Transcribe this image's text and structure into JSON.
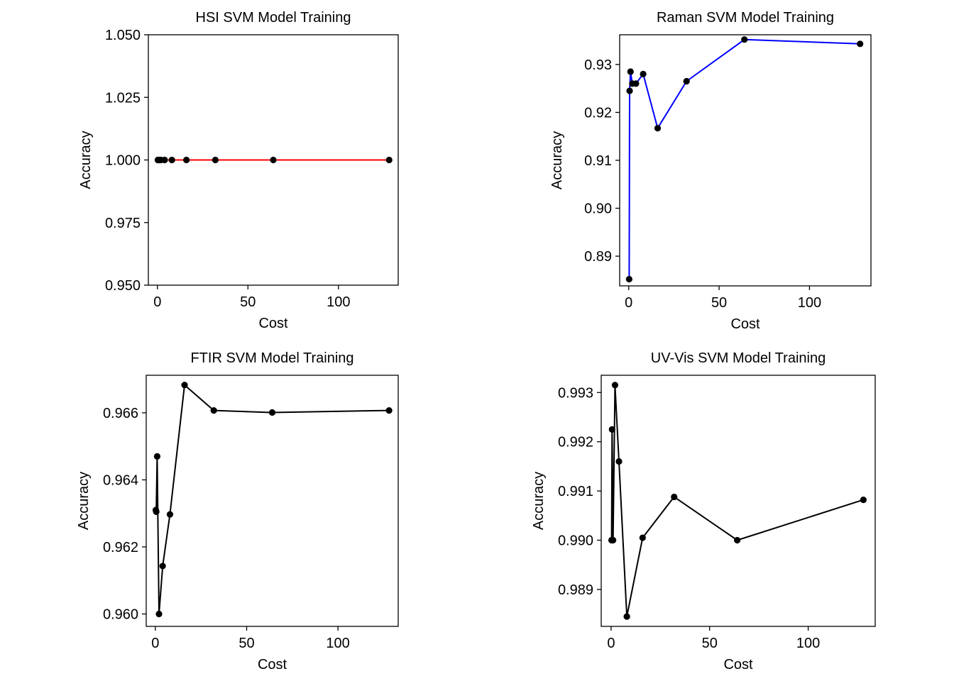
{
  "chart_data": [
    {
      "type": "line",
      "title": "HSI SVM Model Training",
      "xlabel": "Cost",
      "ylabel": "Accuracy",
      "xlim": [
        -5,
        133
      ],
      "ylim": [
        0.95,
        1.05
      ],
      "xticks": [
        0,
        50,
        100
      ],
      "yticks": [
        0.95,
        0.975,
        1.0,
        1.025,
        1.05
      ],
      "ytick_labels": [
        "0.950",
        "0.975",
        "1.000",
        "1.025",
        "1.050"
      ],
      "line_color": "#ff0000",
      "point_color": "#000000",
      "grid": false,
      "x": [
        0.25,
        0.5,
        1,
        2,
        4,
        8,
        16,
        32,
        64,
        128
      ],
      "y": [
        1.0,
        1.0,
        1.0,
        1.0,
        1.0,
        1.0,
        1.0,
        1.0,
        1.0,
        1.0
      ]
    },
    {
      "type": "line",
      "title": "Raman SVM Model Training",
      "xlabel": "Cost",
      "ylabel": "Accuracy",
      "xlim": [
        -5,
        134
      ],
      "ylim": [
        0.8838,
        0.9362
      ],
      "xticks": [
        0,
        50,
        100
      ],
      "yticks": [
        0.89,
        0.9,
        0.91,
        0.92,
        0.93
      ],
      "ytick_labels": [
        "0.89",
        "0.90",
        "0.91",
        "0.92",
        "0.93"
      ],
      "line_color": "#0000ff",
      "point_color": "#000000",
      "grid": false,
      "x": [
        0.25,
        0.5,
        1,
        2,
        4,
        8,
        16,
        32,
        64,
        128
      ],
      "y": [
        0.8852,
        0.9245,
        0.9285,
        0.926,
        0.926,
        0.928,
        0.9167,
        0.9265,
        0.9352,
        0.9343
      ]
    },
    {
      "type": "line",
      "title": "FTIR SVM Model Training",
      "xlabel": "Cost",
      "ylabel": "Accuracy",
      "xlim": [
        -5,
        133
      ],
      "ylim": [
        0.95963,
        0.96712
      ],
      "xticks": [
        0,
        50,
        100
      ],
      "yticks": [
        0.96,
        0.962,
        0.964,
        0.966
      ],
      "ytick_labels": [
        "0.960",
        "0.962",
        "0.964",
        "0.966"
      ],
      "line_color": "#000000",
      "point_color": "#000000",
      "grid": false,
      "x": [
        0.25,
        0.5,
        1,
        2,
        4,
        8,
        16,
        32,
        64,
        128
      ],
      "y": [
        0.9631,
        0.96305,
        0.9647,
        0.96,
        0.96143,
        0.96297,
        0.96683,
        0.96607,
        0.96601,
        0.96607
      ]
    },
    {
      "type": "line",
      "title": "UV-Vis SVM Model Training",
      "xlabel": "Cost",
      "ylabel": "Accuracy",
      "xlim": [
        -5,
        134
      ],
      "ylim": [
        0.98825,
        0.99335
      ],
      "xticks": [
        0,
        50,
        100
      ],
      "yticks": [
        0.989,
        0.99,
        0.991,
        0.992,
        0.993
      ],
      "ytick_labels": [
        "0.989",
        "0.990",
        "0.991",
        "0.992",
        "0.993"
      ],
      "line_color": "#000000",
      "point_color": "#000000",
      "grid": false,
      "x": [
        0.25,
        0.5,
        1,
        2,
        4,
        8,
        16,
        32,
        64,
        128
      ],
      "y": [
        0.99,
        0.99225,
        0.99,
        0.99315,
        0.9916,
        0.98845,
        0.99005,
        0.99088,
        0.99,
        0.99082
      ]
    }
  ]
}
